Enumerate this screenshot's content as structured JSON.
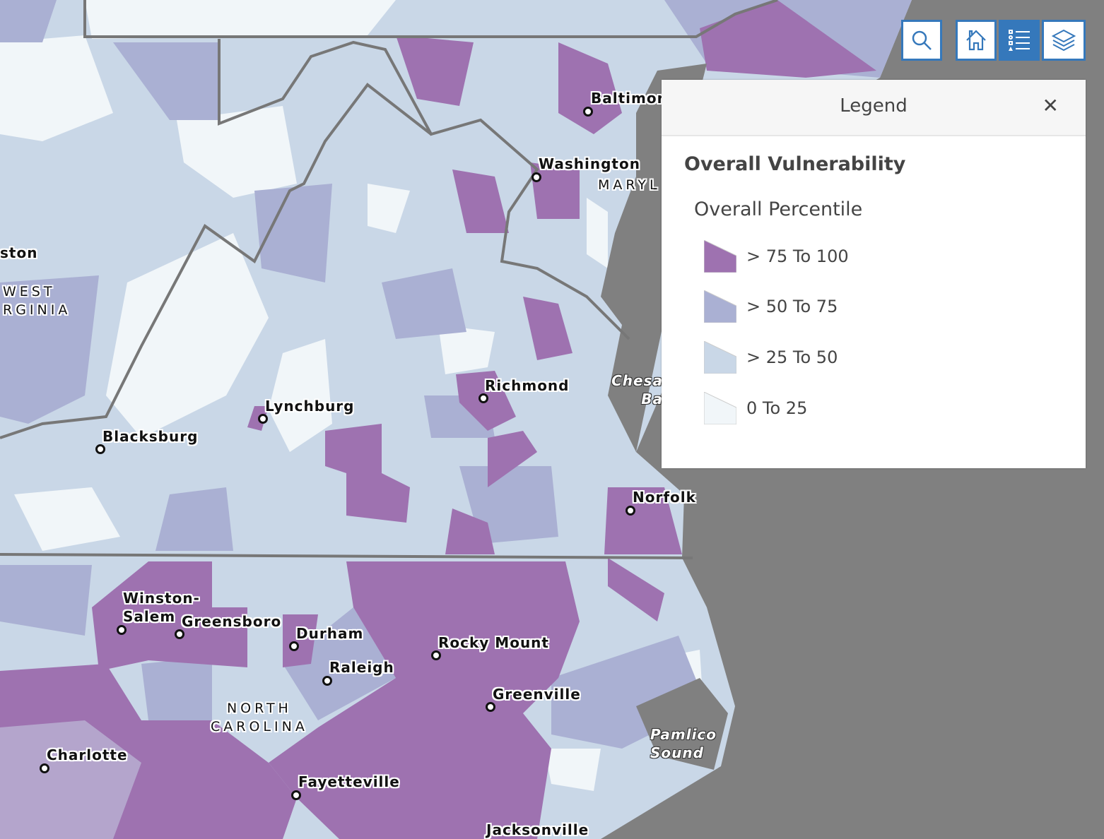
{
  "map": {
    "cities": [
      {
        "name": "Baltimor"
      },
      {
        "name": "Washington"
      },
      {
        "name": "Richmond"
      },
      {
        "name": "Lynchburg"
      },
      {
        "name": "Blacksburg"
      },
      {
        "name": "Norfolk"
      },
      {
        "name": "Winston-\nSalem"
      },
      {
        "name": "Greensboro"
      },
      {
        "name": "Durham"
      },
      {
        "name": "Raleigh"
      },
      {
        "name": "Rocky Mount"
      },
      {
        "name": "Greenville"
      },
      {
        "name": "Charlotte"
      },
      {
        "name": "Fayetteville"
      },
      {
        "name": "Jacksonville"
      },
      {
        "name": "ston"
      }
    ],
    "regions": [
      "WEST\nRGINIA",
      "MARYL",
      "NORTH\nCAROLINA"
    ],
    "water": [
      "Chesa\nBa",
      "Pamlico\nSound"
    ]
  },
  "toolbar": {
    "search": "search-icon",
    "home": "home-icon",
    "legend": "legend-icon",
    "layers": "layers-icon"
  },
  "legend": {
    "title": "Legend",
    "layer_title": "Overall Vulnerability",
    "field_title": "Overall Percentile",
    "items": [
      {
        "label": "> 75 To 100",
        "color": "#9e72b0"
      },
      {
        "label": "> 50 To 75",
        "color": "#aab0d3"
      },
      {
        "label": "> 25 To 50",
        "color": "#c9d7e7"
      },
      {
        "label": "0 To 25",
        "color": "#f1f6f9"
      }
    ]
  }
}
